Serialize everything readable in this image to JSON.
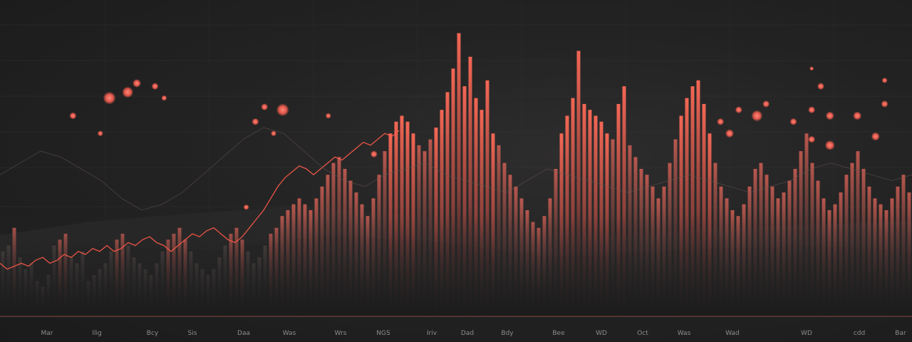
{
  "chart_data": {
    "type": "bar",
    "title": "",
    "xlabel": "",
    "ylabel": "",
    "grid": true,
    "legend": "none",
    "colors": {
      "background": "#1e1e1f",
      "bar_accent": "#ff6a57",
      "bar_dim": "#5a4a48",
      "line": "#ff5a4a",
      "dot": "#ff6f60",
      "grid": "#3a3a3b",
      "axis": "#8a4a40"
    },
    "ylim": [
      0,
      100
    ],
    "x_tick_labels": [
      "Mar",
      "Ilig",
      "Bcy",
      "Sis",
      "Daa",
      "Was",
      "Wrs",
      "NGS",
      "Iriv",
      "Dad",
      "Bdy",
      "Bee",
      "WD",
      "Oct",
      "Was",
      "Wad",
      "WD",
      "cdd",
      "Bar"
    ],
    "bar_values": [
      22,
      24,
      30,
      20,
      16,
      18,
      12,
      10,
      14,
      24,
      26,
      28,
      20,
      18,
      22,
      12,
      14,
      16,
      18,
      22,
      26,
      28,
      24,
      20,
      18,
      16,
      14,
      18,
      22,
      26,
      28,
      30,
      26,
      22,
      18,
      16,
      14,
      16,
      20,
      24,
      28,
      30,
      26,
      22,
      18,
      20,
      24,
      28,
      30,
      34,
      36,
      38,
      40,
      38,
      36,
      40,
      44,
      48,
      52,
      54,
      50,
      46,
      42,
      38,
      34,
      40,
      48,
      56,
      62,
      66,
      68,
      66,
      62,
      58,
      56,
      60,
      64,
      70,
      76,
      84,
      96,
      78,
      88,
      74,
      70,
      80,
      62,
      58,
      52,
      48,
      44,
      40,
      36,
      32,
      30,
      34,
      40,
      50,
      62,
      68,
      74,
      90,
      72,
      70,
      68,
      66,
      62,
      60,
      72,
      78,
      58,
      54,
      50,
      48,
      44,
      40,
      44,
      52,
      60,
      68,
      74,
      78,
      80,
      72,
      62,
      52,
      44,
      40,
      36,
      34,
      38,
      44,
      50,
      52,
      48,
      44,
      40,
      42,
      46,
      50,
      56,
      62,
      52,
      46,
      40,
      36,
      38,
      42,
      48,
      52,
      56,
      50,
      44,
      40,
      38,
      36,
      40,
      44,
      48,
      42
    ],
    "highlight_from": 60,
    "highlight_to": 128,
    "series": [
      {
        "type": "line",
        "values": [
          18,
          16,
          17,
          18,
          17,
          19,
          20,
          18,
          19,
          21,
          20,
          22,
          21,
          23,
          22,
          24,
          22,
          23,
          25,
          24,
          26,
          27,
          25,
          24,
          22,
          24,
          26,
          28,
          27,
          29,
          30,
          28,
          26,
          25,
          27,
          30,
          33,
          36,
          40,
          44,
          47,
          49,
          51,
          50,
          48,
          50,
          52,
          54,
          53,
          55,
          57,
          59,
          58,
          60,
          62,
          61,
          63
        ]
      },
      {
        "type": "line",
        "values": [
          48,
          52,
          56,
          54,
          50,
          46,
          40,
          36,
          38,
          42,
          48,
          54,
          60,
          64,
          62,
          56,
          50,
          46,
          44,
          48,
          50,
          52,
          48,
          46,
          44,
          42,
          46,
          50,
          48,
          46,
          44,
          42,
          44,
          46,
          48,
          46,
          44,
          42,
          44,
          46,
          50,
          52,
          50,
          48,
          46,
          48
        ]
      }
    ],
    "scatter_points": [
      {
        "x": 8,
        "y": 68,
        "r": 5
      },
      {
        "x": 11,
        "y": 62,
        "r": 4
      },
      {
        "x": 12,
        "y": 74,
        "r": 9
      },
      {
        "x": 14,
        "y": 76,
        "r": 8
      },
      {
        "x": 15,
        "y": 79,
        "r": 6
      },
      {
        "x": 17,
        "y": 78,
        "r": 5
      },
      {
        "x": 18,
        "y": 74,
        "r": 4
      },
      {
        "x": 27,
        "y": 37,
        "r": 4
      },
      {
        "x": 28,
        "y": 66,
        "r": 5
      },
      {
        "x": 29,
        "y": 71,
        "r": 5
      },
      {
        "x": 30,
        "y": 62,
        "r": 4
      },
      {
        "x": 31,
        "y": 70,
        "r": 9
      },
      {
        "x": 36,
        "y": 68,
        "r": 4
      },
      {
        "x": 41,
        "y": 55,
        "r": 5
      },
      {
        "x": 79,
        "y": 66,
        "r": 5
      },
      {
        "x": 80,
        "y": 62,
        "r": 6
      },
      {
        "x": 81,
        "y": 70,
        "r": 5
      },
      {
        "x": 83,
        "y": 68,
        "r": 8
      },
      {
        "x": 84,
        "y": 72,
        "r": 5
      },
      {
        "x": 87,
        "y": 66,
        "r": 5
      },
      {
        "x": 89,
        "y": 70,
        "r": 5
      },
      {
        "x": 90,
        "y": 78,
        "r": 5
      },
      {
        "x": 91,
        "y": 68,
        "r": 6
      },
      {
        "x": 91,
        "y": 58,
        "r": 7
      },
      {
        "x": 94,
        "y": 68,
        "r": 6
      },
      {
        "x": 96,
        "y": 61,
        "r": 6
      },
      {
        "x": 97,
        "y": 72,
        "r": 5
      },
      {
        "x": 89,
        "y": 60,
        "r": 5
      },
      {
        "x": 97,
        "y": 80,
        "r": 4
      },
      {
        "x": 89,
        "y": 84,
        "r": 3
      }
    ]
  }
}
